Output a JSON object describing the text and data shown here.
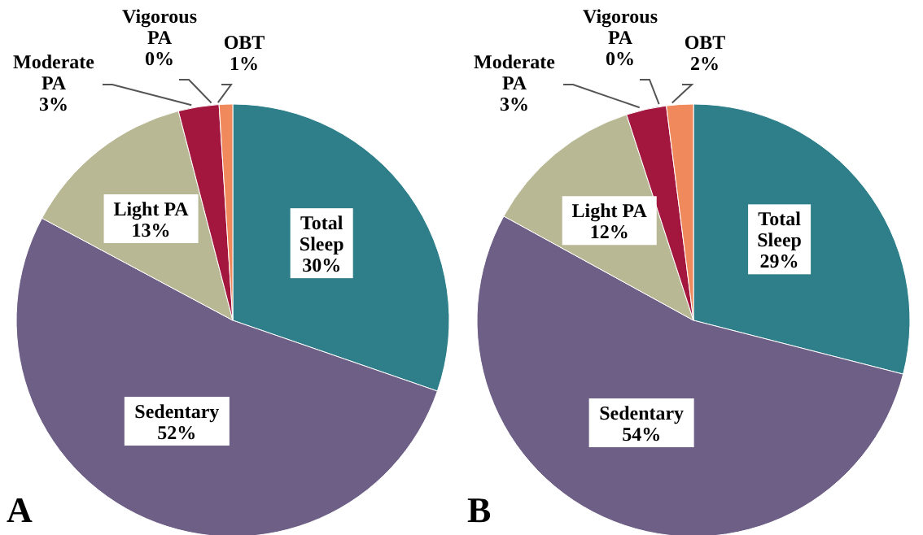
{
  "chart_data": [
    {
      "type": "pie",
      "categories": [
        "Total Sleep",
        "Sedentary",
        "Light PA",
        "Moderate PA",
        "Vigorous PA",
        "OBT"
      ],
      "values": [
        30,
        52,
        13,
        3,
        0,
        1
      ],
      "value_labels": [
        "30%",
        "52%",
        "13%",
        "3%",
        "0%",
        "1%"
      ],
      "colors": [
        "#2f7f8a",
        "#6e5f86",
        "#b9b894",
        "#a3173f",
        "#5a4a7a",
        "#f08a5d"
      ],
      "annotations": [
        "A"
      ],
      "legend": false
    },
    {
      "type": "pie",
      "categories": [
        "Total Sleep",
        "Sedentary",
        "Light PA",
        "Moderate PA",
        "Vigorous PA",
        "OBT"
      ],
      "values": [
        29,
        54,
        12,
        3,
        0,
        2
      ],
      "value_labels": [
        "29%",
        "54%",
        "12%",
        "3%",
        "0%",
        "2%"
      ],
      "colors": [
        "#2f7f8a",
        "#6e5f86",
        "#b9b894",
        "#a3173f",
        "#5a4a7a",
        "#f08a5d"
      ],
      "annotations": [
        "B"
      ],
      "legend": false
    }
  ]
}
